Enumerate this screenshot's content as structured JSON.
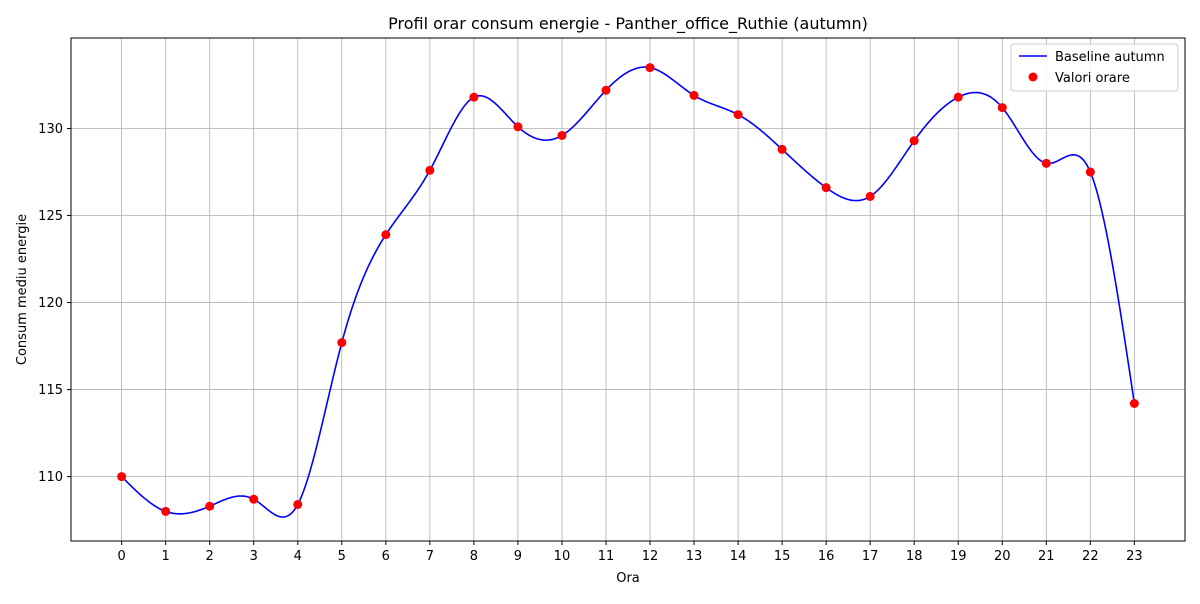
{
  "chart_data": {
    "type": "line",
    "title": "Profil orar consum energie - Panther_office_Ruthie (autumn)",
    "xlabel": "Ora",
    "ylabel": "Consum mediu energie",
    "x": [
      0,
      1,
      2,
      3,
      4,
      5,
      6,
      7,
      8,
      9,
      10,
      11,
      12,
      13,
      14,
      15,
      16,
      17,
      18,
      19,
      20,
      21,
      22,
      23
    ],
    "xlim": [
      -1.15,
      24.15
    ],
    "ylim": [
      106.3,
      135.2
    ],
    "xticks": [
      0,
      1,
      2,
      3,
      4,
      5,
      6,
      7,
      8,
      9,
      10,
      11,
      12,
      13,
      14,
      15,
      16,
      17,
      18,
      19,
      20,
      21,
      22,
      23
    ],
    "yticks": [
      110,
      115,
      120,
      125,
      130
    ],
    "grid": true,
    "legend_position": "top-right",
    "series": [
      {
        "name": "Baseline autumn",
        "kind": "line",
        "smooth": true,
        "color": "#0000ff",
        "values": [
          110.0,
          108.0,
          108.3,
          108.7,
          108.4,
          117.7,
          123.9,
          127.6,
          131.8,
          130.1,
          129.6,
          132.2,
          133.5,
          131.9,
          130.8,
          128.8,
          126.6,
          126.1,
          129.3,
          131.8,
          131.2,
          128.0,
          127.5,
          114.2
        ]
      },
      {
        "name": "Valori orare",
        "kind": "scatter",
        "color": "#ff0000",
        "values": [
          110.0,
          108.0,
          108.3,
          108.7,
          108.4,
          117.7,
          123.9,
          127.6,
          131.8,
          130.1,
          129.6,
          132.2,
          133.5,
          131.9,
          130.8,
          128.8,
          126.6,
          126.1,
          129.3,
          131.8,
          131.2,
          128.0,
          127.5,
          114.2
        ]
      }
    ]
  }
}
